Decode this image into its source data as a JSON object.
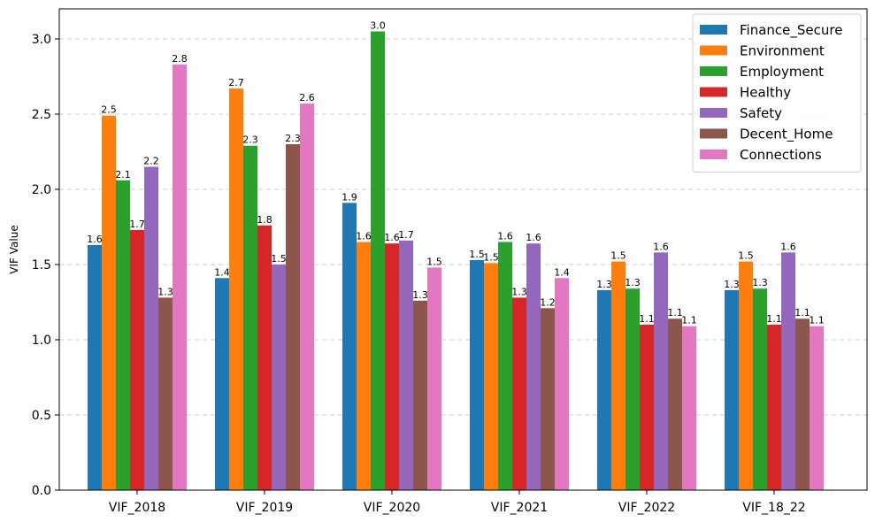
{
  "chart_data": {
    "type": "bar",
    "title": "",
    "xlabel": "",
    "ylabel": "VIF Value",
    "ylim": [
      0,
      3.2
    ],
    "yticks": [
      "0.0",
      "0.5",
      "1.0",
      "1.5",
      "2.0",
      "2.5",
      "3.0"
    ],
    "grid": "horizontal dashed",
    "legend_position": "top-right",
    "categories": [
      "VIF_2018",
      "VIF_2019",
      "VIF_2020",
      "VIF_2021",
      "VIF_2022",
      "VIF_18_22"
    ],
    "series": [
      {
        "name": "Finance_Secure",
        "color": "#1f77b4",
        "values": [
          1.63,
          1.41,
          1.91,
          1.53,
          1.33,
          1.33
        ],
        "labels": [
          "1.6",
          "1.4",
          "1.9",
          "1.5",
          "1.3",
          "1.3"
        ]
      },
      {
        "name": "Environment",
        "color": "#ff7f0e",
        "values": [
          2.49,
          2.67,
          1.65,
          1.51,
          1.52,
          1.52
        ],
        "labels": [
          "2.5",
          "2.7",
          "1.6",
          "1.5",
          "1.5",
          "1.5"
        ]
      },
      {
        "name": "Employment",
        "color": "#2ca02c",
        "values": [
          2.06,
          2.29,
          3.05,
          1.65,
          1.34,
          1.34
        ],
        "labels": [
          "2.1",
          "2.3",
          "3.0",
          "1.6",
          "1.3",
          "1.3"
        ]
      },
      {
        "name": "Healthy",
        "color": "#d62728",
        "values": [
          1.73,
          1.76,
          1.64,
          1.28,
          1.1,
          1.1
        ],
        "labels": [
          "1.7",
          "1.8",
          "1.6",
          "1.3",
          "1.1",
          "1.1"
        ]
      },
      {
        "name": "Safety",
        "color": "#9467bd",
        "values": [
          2.15,
          1.5,
          1.66,
          1.64,
          1.58,
          1.58
        ],
        "labels": [
          "2.2",
          "1.5",
          "1.7",
          "1.6",
          "1.6",
          "1.6"
        ]
      },
      {
        "name": "Decent_Home",
        "color": "#8c564b",
        "values": [
          1.28,
          2.3,
          1.26,
          1.21,
          1.14,
          1.14
        ],
        "labels": [
          "1.3",
          "2.3",
          "1.3",
          "1.2",
          "1.1",
          "1.1"
        ]
      },
      {
        "name": "Connections",
        "color": "#e377c2",
        "values": [
          2.83,
          2.57,
          1.48,
          1.41,
          1.09,
          1.09
        ],
        "labels": [
          "2.8",
          "2.6",
          "1.5",
          "1.4",
          "1.1",
          "1.1"
        ]
      }
    ]
  }
}
